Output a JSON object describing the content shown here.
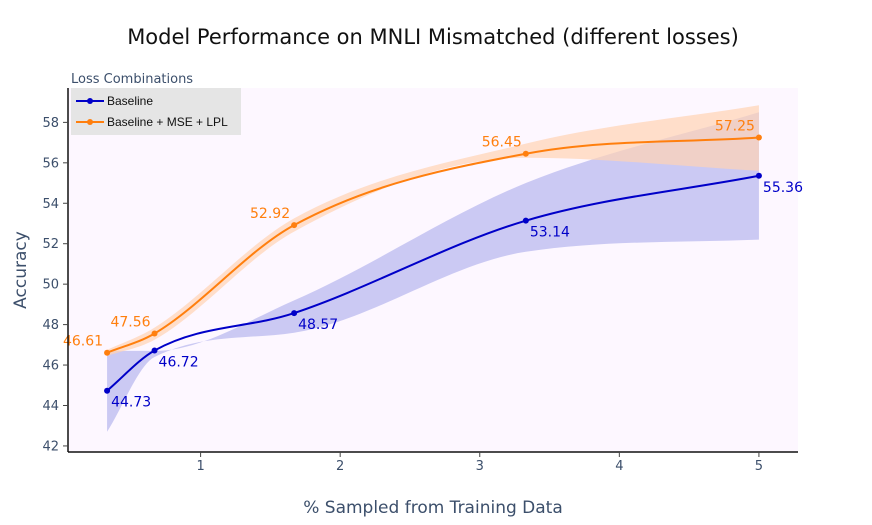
{
  "chart_data": {
    "type": "line",
    "title": "Model Performance on MNLI Mismatched (different losses)",
    "xlabel": "% Sampled from Training Data",
    "ylabel": "Accuracy",
    "xlim": [
      0.05,
      5.28
    ],
    "ylim": [
      41.7,
      59.7
    ],
    "xticks": [
      1,
      2,
      3,
      4,
      5
    ],
    "yticks": [
      42,
      44,
      46,
      48,
      50,
      52,
      54,
      56,
      58
    ],
    "legend": {
      "title": "Loss Combinations",
      "position": "top-left",
      "entries": [
        "Baseline",
        "Baseline + MSE + LPL"
      ]
    },
    "series": [
      {
        "name": "Baseline",
        "color": "#0000c8",
        "band_color": "#b9b9ef",
        "x": [
          0.33,
          0.67,
          1.67,
          3.33,
          5.0
        ],
        "values": [
          44.73,
          46.72,
          48.57,
          53.14,
          55.36
        ],
        "labels": [
          "44.73",
          "46.72",
          "48.57",
          "53.14",
          "55.36"
        ],
        "band_upper": [
          46.7,
          46.7,
          49.2,
          55.0,
          58.5
        ],
        "band_lower": [
          42.7,
          46.4,
          47.6,
          51.6,
          52.2
        ]
      },
      {
        "name": "Baseline + MSE + LPL",
        "color": "#ff7f0e",
        "band_color": "#ffd3b3",
        "x": [
          0.33,
          0.67,
          1.67,
          3.33,
          5.0
        ],
        "values": [
          46.61,
          47.56,
          52.92,
          56.45,
          57.25
        ],
        "labels": [
          "46.61",
          "47.56",
          "52.92",
          "56.45",
          "57.25"
        ],
        "band_upper": [
          46.75,
          47.85,
          53.25,
          56.95,
          58.85
        ],
        "band_lower": [
          46.45,
          47.25,
          52.6,
          56.25,
          55.6
        ]
      }
    ]
  }
}
